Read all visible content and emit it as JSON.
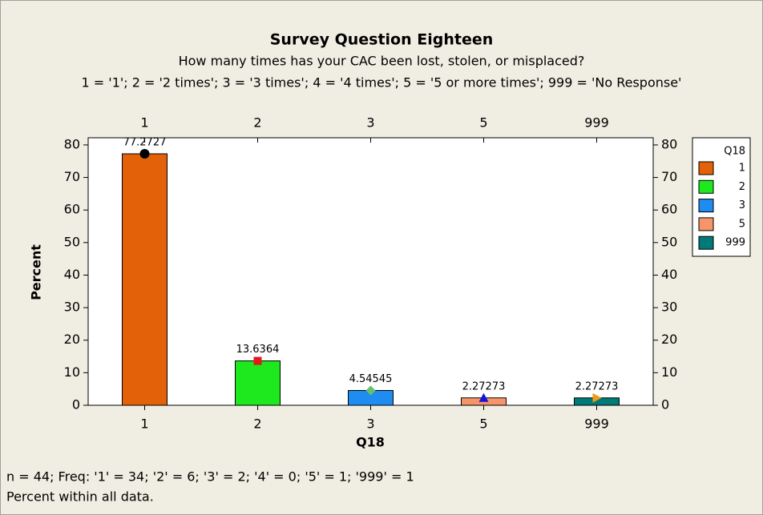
{
  "chart_data": {
    "type": "bar",
    "title": "Survey Question Eighteen",
    "subtitle": "How many times has your CAC been lost, stolen, or misplaced?",
    "subtitle2": "1 = '1'; 2 = '2 times'; 3 = '3 times'; 4 = '4 times'; 5 = '5 or more times'; 999 = 'No Response'",
    "xlabel": "Q18",
    "ylabel": "Percent",
    "legend_title": "Q18",
    "categories": [
      "1",
      "2",
      "3",
      "5",
      "999"
    ],
    "values": [
      77.2727,
      13.6364,
      4.54545,
      2.27273,
      2.27273
    ],
    "colors": [
      "#e36209",
      "#1ee81e",
      "#1e8cf0",
      "#f7956a",
      "#007a78"
    ],
    "marker_shapes": [
      "circle",
      "square",
      "diamond",
      "triangle",
      "triangle-right"
    ],
    "marker_colors": [
      "#000000",
      "#e31a1c",
      "#66c266",
      "#1414d8",
      "#f09a1a"
    ],
    "ylim": [
      0,
      82.2
    ],
    "yticks": [
      0,
      10,
      20,
      30,
      40,
      50,
      60,
      70,
      80
    ],
    "legend": "right",
    "footnotes": [
      "n = 44; Freq: '1' = 34; '2' = 6; '3' = 2; '4' = 0; '5' = 1; '999' = 1",
      "Percent within all data."
    ]
  }
}
